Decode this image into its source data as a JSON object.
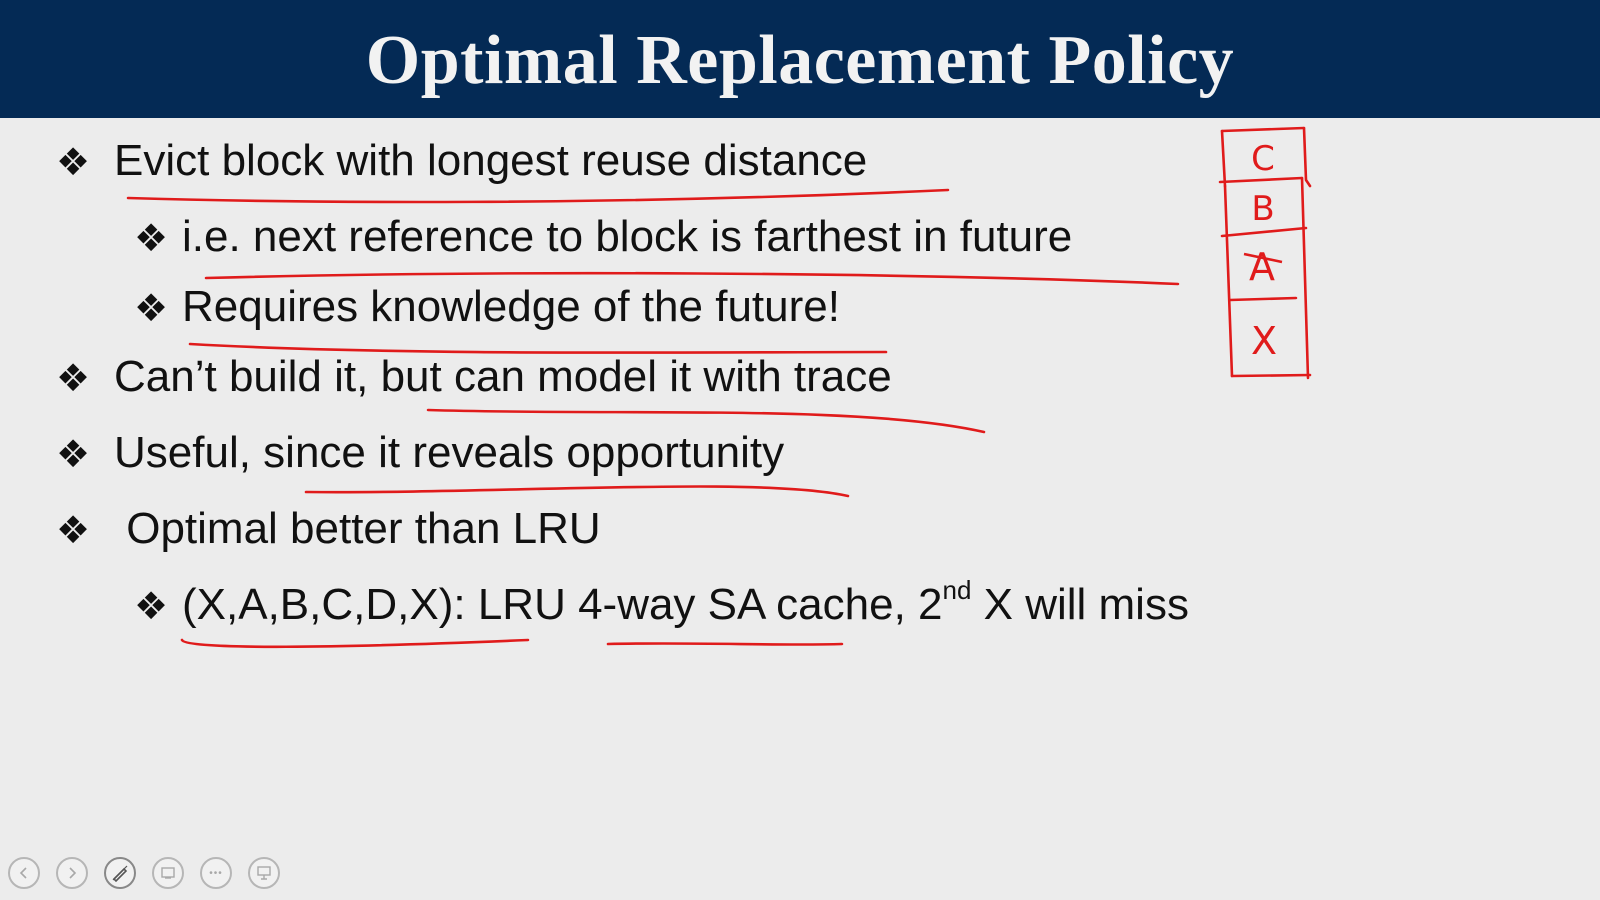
{
  "slide": {
    "title": "Optimal Replacement Policy",
    "bullets": [
      {
        "id": "b1",
        "level": 1,
        "text": "Evict block with longest reuse distance"
      },
      {
        "id": "b2",
        "level": 2,
        "text": "i.e. next reference to block is farthest in future"
      },
      {
        "id": "b3",
        "level": 2,
        "text": "Requires knowledge of the future!"
      },
      {
        "id": "b4",
        "level": 1,
        "text": "Can’t build it, but can model it with trace"
      },
      {
        "id": "b5",
        "level": 1,
        "text": "Useful, since it reveals opportunity"
      },
      {
        "id": "b6",
        "level": 1,
        "text": " Optimal better than LRU"
      },
      {
        "id": "b7",
        "level": 2,
        "text_before": "(X,A,B,C,D,X): LRU 4-way SA cache, 2",
        "sup": "nd",
        "text_after": " X will miss"
      }
    ],
    "bullet_glyph": "❖"
  },
  "annotations": {
    "ink_color": "#e01b1b",
    "cache_stack_labels": [
      "C",
      "B",
      "A",
      "X"
    ]
  },
  "controls": {
    "icons": [
      "prev-icon",
      "next-icon",
      "pen-icon",
      "slide-sorter-icon",
      "more-icon",
      "presenter-view-icon"
    ],
    "more_glyph": "•••"
  }
}
